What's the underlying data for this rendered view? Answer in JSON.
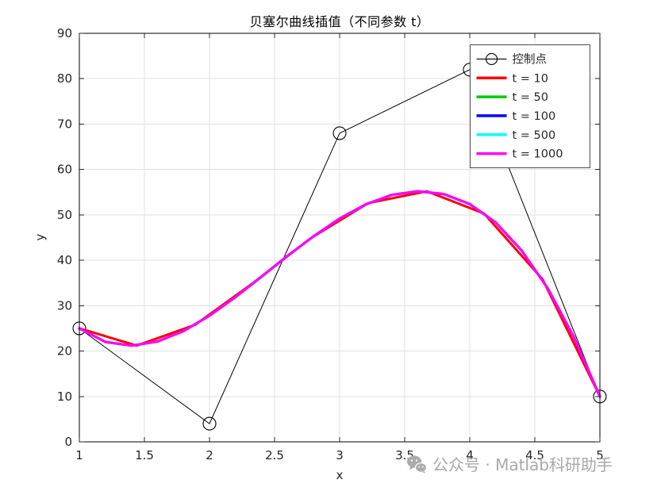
{
  "watermark": {
    "text": "公众号 · Matlab科研助手"
  },
  "chart_data": {
    "type": "line",
    "title": "贝塞尔曲线插值（不同参数 t）",
    "xlabel": "x",
    "ylabel": "y",
    "xlim": [
      1,
      5
    ],
    "ylim": [
      0,
      90
    ],
    "xticks": [
      1,
      1.5,
      2,
      2.5,
      3,
      3.5,
      4,
      4.5,
      5
    ],
    "yticks": [
      0,
      10,
      20,
      30,
      40,
      50,
      60,
      70,
      80,
      90
    ],
    "grid": true,
    "grid_color": "#e0e0e0",
    "axis_color": "#000000",
    "tick_label_color": "#262626",
    "legend_position": "top-right",
    "series": [
      {
        "name": "控制点",
        "color": "#000000",
        "line_width": 1,
        "marker": "circle",
        "marker_size": 8,
        "x": [
          1,
          2,
          3,
          4,
          5
        ],
        "y": [
          25,
          4,
          68,
          82,
          10
        ]
      },
      {
        "name": "t = 10",
        "color": "#ff0000",
        "line_width": 3,
        "x": [
          1,
          1.44,
          1.89,
          2.33,
          2.78,
          3.22,
          3.67,
          4.11,
          4.56,
          5
        ],
        "y": [
          25,
          21.2,
          25.8,
          34.9,
          44.9,
          52.6,
          55.2,
          50.3,
          35.8,
          10
        ]
      },
      {
        "name": "t = 50",
        "color": "#00cc00",
        "line_width": 3,
        "x": [
          1,
          1.2,
          1.4,
          1.6,
          1.8,
          2,
          2.2,
          2.4,
          2.6,
          2.8,
          3,
          3.2,
          3.4,
          3.6,
          3.8,
          4,
          4.2,
          4.4,
          4.6,
          4.8,
          5
        ],
        "y": [
          25,
          22,
          21.2,
          22.1,
          24.4,
          27.8,
          31.9,
          36.4,
          41,
          45.3,
          49.2,
          52.3,
          54.4,
          55.2,
          54.6,
          52.4,
          48.3,
          42.1,
          33.8,
          23.1,
          10
        ]
      },
      {
        "name": "t = 100",
        "color": "#0000ff",
        "line_width": 3,
        "x": [
          1,
          1.2,
          1.4,
          1.6,
          1.8,
          2,
          2.2,
          2.4,
          2.6,
          2.8,
          3,
          3.2,
          3.4,
          3.6,
          3.8,
          4,
          4.2,
          4.4,
          4.6,
          4.8,
          5
        ],
        "y": [
          25,
          22,
          21.2,
          22.1,
          24.4,
          27.8,
          31.9,
          36.4,
          41,
          45.3,
          49.2,
          52.3,
          54.4,
          55.2,
          54.6,
          52.4,
          48.3,
          42.1,
          33.8,
          23.1,
          10
        ]
      },
      {
        "name": "t = 500",
        "color": "#00ffff",
        "line_width": 3,
        "x": [
          1,
          1.2,
          1.4,
          1.6,
          1.8,
          2,
          2.2,
          2.4,
          2.6,
          2.8,
          3,
          3.2,
          3.4,
          3.6,
          3.8,
          4,
          4.2,
          4.4,
          4.6,
          4.8,
          5
        ],
        "y": [
          25,
          22,
          21.2,
          22.1,
          24.4,
          27.8,
          31.9,
          36.4,
          41,
          45.3,
          49.2,
          52.3,
          54.4,
          55.2,
          54.6,
          52.4,
          48.3,
          42.1,
          33.8,
          23.1,
          10
        ]
      },
      {
        "name": "t = 1000",
        "color": "#ff00ff",
        "line_width": 3.2,
        "x": [
          1,
          1.2,
          1.4,
          1.6,
          1.8,
          2,
          2.2,
          2.4,
          2.6,
          2.8,
          3,
          3.2,
          3.4,
          3.6,
          3.8,
          4,
          4.2,
          4.4,
          4.6,
          4.8,
          5
        ],
        "y": [
          25,
          22,
          21.2,
          22.1,
          24.4,
          27.8,
          31.9,
          36.4,
          41,
          45.3,
          49.2,
          52.3,
          54.4,
          55.2,
          54.6,
          52.4,
          48.3,
          42.1,
          33.8,
          23.1,
          10
        ]
      }
    ]
  }
}
